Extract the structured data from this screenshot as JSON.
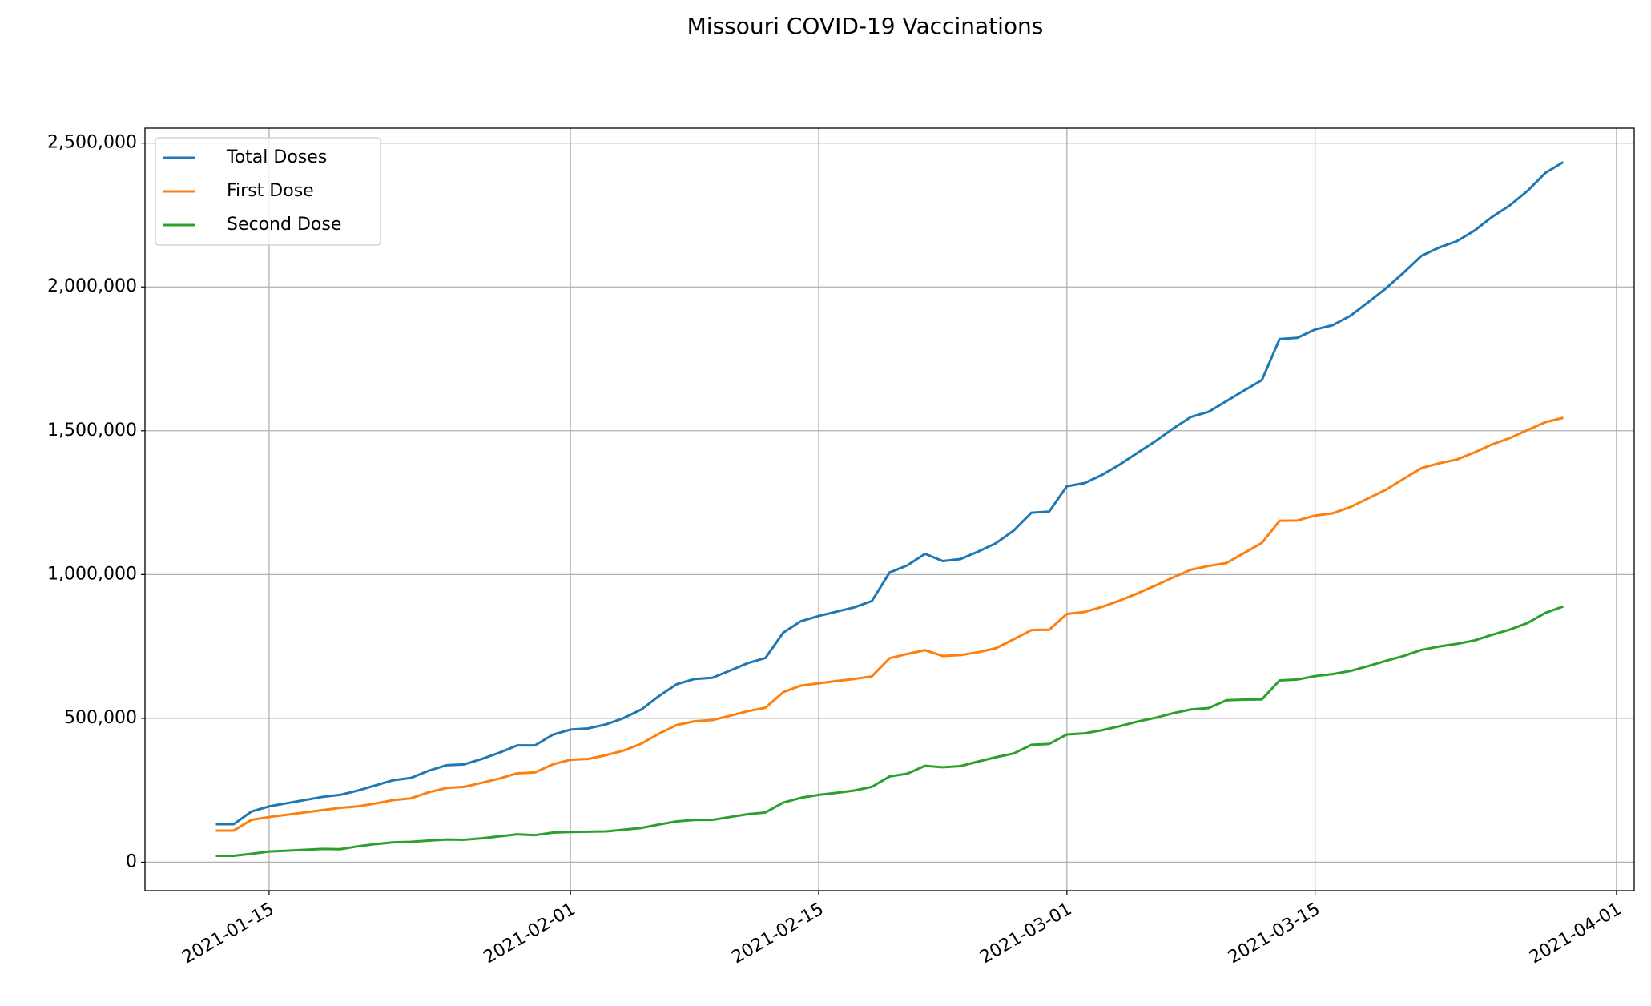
{
  "chart_data": {
    "type": "line",
    "title": "Missouri COVID-19 Vaccinations",
    "x": [
      "2021-01-12",
      "2021-01-13",
      "2021-01-14",
      "2021-01-15",
      "2021-01-16",
      "2021-01-17",
      "2021-01-18",
      "2021-01-19",
      "2021-01-20",
      "2021-01-21",
      "2021-01-22",
      "2021-01-23",
      "2021-01-24",
      "2021-01-25",
      "2021-01-26",
      "2021-01-27",
      "2021-01-28",
      "2021-01-29",
      "2021-01-30",
      "2021-01-31",
      "2021-02-01",
      "2021-02-02",
      "2021-02-03",
      "2021-02-04",
      "2021-02-05",
      "2021-02-06",
      "2021-02-07",
      "2021-02-08",
      "2021-02-09",
      "2021-02-10",
      "2021-02-11",
      "2021-02-12",
      "2021-02-13",
      "2021-02-14",
      "2021-02-15",
      "2021-02-16",
      "2021-02-17",
      "2021-02-18",
      "2021-02-19",
      "2021-02-20",
      "2021-02-21",
      "2021-02-22",
      "2021-02-23",
      "2021-02-24",
      "2021-02-25",
      "2021-02-26",
      "2021-02-27",
      "2021-02-28",
      "2021-03-01",
      "2021-03-02",
      "2021-03-03",
      "2021-03-04",
      "2021-03-05",
      "2021-03-06",
      "2021-03-07",
      "2021-03-08",
      "2021-03-09",
      "2021-03-10",
      "2021-03-11",
      "2021-03-12",
      "2021-03-13",
      "2021-03-14",
      "2021-03-15",
      "2021-03-16",
      "2021-03-17",
      "2021-03-18",
      "2021-03-19",
      "2021-03-20",
      "2021-03-21",
      "2021-03-22",
      "2021-03-23",
      "2021-03-24",
      "2021-03-25",
      "2021-03-26",
      "2021-03-27",
      "2021-03-28",
      "2021-03-29"
    ],
    "series": [
      {
        "name": "Total Doses",
        "color": "#1f77b4",
        "values": [
          132000,
          132000,
          176000,
          194000,
          205000,
          216000,
          227000,
          234000,
          249000,
          267000,
          285000,
          293000,
          318000,
          337000,
          340000,
          359000,
          381000,
          406000,
          406000,
          443000,
          461000,
          465000,
          479000,
          501000,
          531000,
          578000,
          619000,
          637000,
          641000,
          666000,
          692000,
          710000,
          798000,
          838000,
          856000,
          871000,
          886000,
          908000,
          1007000,
          1032000,
          1072000,
          1047000,
          1054000,
          1080000,
          1109000,
          1153000,
          1215000,
          1219000,
          1307000,
          1318000,
          1347000,
          1383000,
          1424000,
          1464000,
          1508000,
          1548000,
          1566000,
          1603000,
          1640000,
          1676000,
          1819000,
          1823000,
          1852000,
          1867000,
          1900000,
          1947000,
          1995000,
          2050000,
          2108000,
          2137000,
          2159000,
          2196000,
          2244000,
          2284000,
          2335000,
          2397000,
          2434000
        ]
      },
      {
        "name": "First Dose",
        "color": "#ff7f0e",
        "values": [
          110000,
          110000,
          147000,
          157000,
          165000,
          173000,
          181000,
          189000,
          194000,
          204000,
          216000,
          222000,
          243000,
          258000,
          262000,
          276000,
          291000,
          309000,
          312000,
          340000,
          356000,
          359000,
          372000,
          388000,
          412000,
          447000,
          477000,
          490000,
          494000,
          509000,
          525000,
          537000,
          591000,
          614000,
          622000,
          630000,
          637000,
          646000,
          709000,
          724000,
          737000,
          717000,
          720000,
          730000,
          744000,
          775000,
          807000,
          808000,
          863000,
          870000,
          888000,
          910000,
          935000,
          962000,
          990000,
          1017000,
          1030000,
          1040000,
          1075000,
          1110000,
          1187000,
          1188000,
          1205000,
          1213000,
          1235000,
          1265000,
          1295000,
          1333000,
          1370000,
          1387000,
          1400000,
          1425000,
          1453000,
          1475000,
          1503000,
          1530000,
          1545000
        ]
      },
      {
        "name": "Second Dose",
        "color": "#2ca02c",
        "values": [
          22000,
          22000,
          29000,
          37000,
          40000,
          43000,
          46000,
          45000,
          55000,
          63000,
          69000,
          71000,
          75000,
          79000,
          78000,
          83000,
          90000,
          97000,
          94000,
          103000,
          105000,
          106000,
          107000,
          113000,
          119000,
          131000,
          142000,
          147000,
          147000,
          157000,
          167000,
          173000,
          207000,
          224000,
          234000,
          241000,
          249000,
          262000,
          298000,
          308000,
          335000,
          330000,
          334000,
          350000,
          365000,
          378000,
          408000,
          411000,
          444000,
          448000,
          459000,
          473000,
          489000,
          502000,
          518000,
          531000,
          536000,
          563000,
          565000,
          566000,
          632000,
          635000,
          647000,
          654000,
          665000,
          682000,
          700000,
          717000,
          738000,
          750000,
          759000,
          771000,
          791000,
          809000,
          832000,
          867000,
          889000
        ]
      }
    ],
    "xlim": [
      "2021-01-08",
      "2021-04-02"
    ],
    "xticks": [
      "2021-01-15",
      "2021-02-01",
      "2021-02-15",
      "2021-03-01",
      "2021-03-15",
      "2021-04-01"
    ],
    "ylim": [
      -99000,
      2552000
    ],
    "yticks": [
      0,
      {
        "value": 500000,
        "label": "500,000"
      },
      {
        "value": 1000000,
        "label": "1,000,000"
      },
      {
        "value": 1500000,
        "label": "1,500,000"
      },
      {
        "value": 2000000,
        "label": "2,000,000"
      },
      {
        "value": 2500000,
        "label": "2,500,000"
      }
    ],
    "grid": true,
    "legend": "upper left"
  }
}
